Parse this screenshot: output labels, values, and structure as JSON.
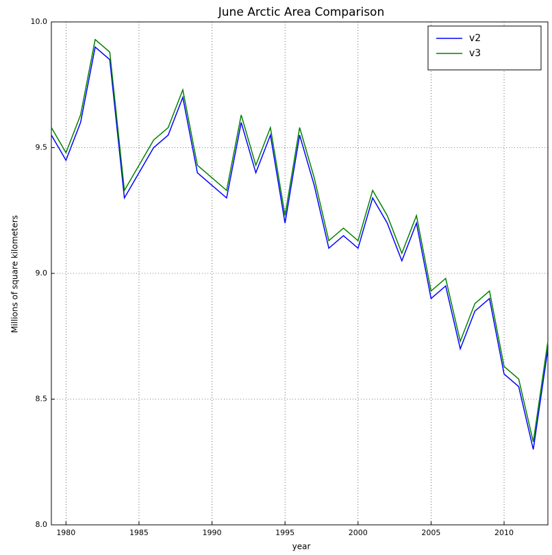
{
  "chart_data": {
    "type": "line",
    "title": "June Arctic Area Comparison",
    "x_label": "year",
    "y_label": "Millions of square kilometers",
    "x": [
      1979,
      1980,
      1981,
      1982,
      1983,
      1984,
      1985,
      1986,
      1987,
      1988,
      1989,
      1990,
      1991,
      1992,
      1993,
      1994,
      1995,
      1996,
      1997,
      1998,
      1999,
      2000,
      2001,
      2002,
      2003,
      2004,
      2005,
      2006,
      2007,
      2008,
      2009,
      2010,
      2011,
      2012,
      2013
    ],
    "series": [
      {
        "name": "v2",
        "color": "#0000ff",
        "values": [
          9.55,
          9.45,
          9.6,
          9.9,
          9.85,
          9.3,
          9.4,
          9.5,
          9.55,
          9.7,
          9.4,
          9.35,
          9.3,
          9.6,
          9.4,
          9.55,
          9.2,
          9.55,
          9.35,
          9.1,
          9.15,
          9.1,
          9.3,
          9.2,
          9.05,
          9.2,
          8.9,
          8.95,
          8.7,
          8.85,
          8.9,
          8.6,
          8.55,
          8.3,
          8.7
        ]
      },
      {
        "name": "v3",
        "color": "#008000",
        "values": [
          9.58,
          9.48,
          9.63,
          9.93,
          9.88,
          9.33,
          9.43,
          9.53,
          9.58,
          9.73,
          9.43,
          9.38,
          9.33,
          9.63,
          9.43,
          9.58,
          9.23,
          9.58,
          9.38,
          9.13,
          9.18,
          9.13,
          9.33,
          9.23,
          9.08,
          9.23,
          8.93,
          8.98,
          8.73,
          8.88,
          8.93,
          8.63,
          8.58,
          8.33,
          8.73
        ]
      }
    ],
    "xlim": [
      1979,
      2013
    ],
    "xticks": [
      1980,
      1985,
      1990,
      1995,
      2000,
      2005,
      2010
    ],
    "ylim": [
      8,
      10
    ],
    "yticks": [
      {
        "value": 8,
        "label": "8.0"
      },
      {
        "value": 8.5,
        "label": "8.5"
      },
      {
        "value": 9,
        "label": "9.0"
      },
      {
        "value": 9.5,
        "label": "9.5"
      },
      {
        "value": 10,
        "label": "10.0"
      }
    ],
    "grid": true,
    "legend": "upper right"
  }
}
